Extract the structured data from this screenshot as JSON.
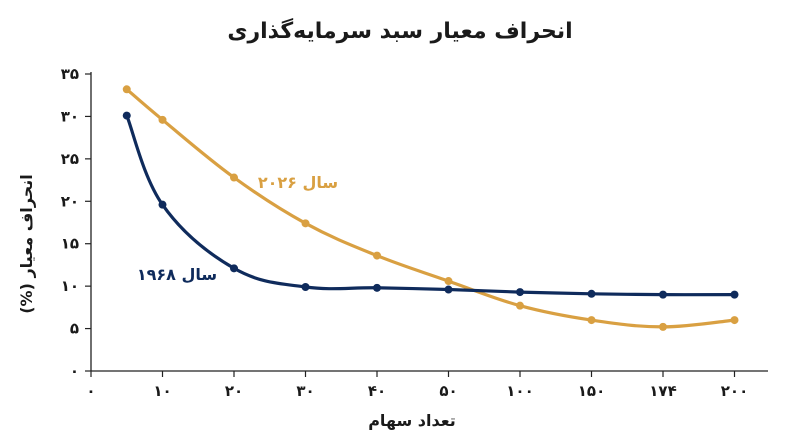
{
  "chart_data": {
    "type": "line",
    "title": "انحراف معیار سبد سرمایه‌گذاری",
    "xlabel": "تعداد سهام",
    "ylabel": "انحراف معیار (%)",
    "categories": [
      "۰",
      "۱۰",
      "۲۰",
      "۳۰",
      "۴۰",
      "۵۰",
      "۱۰۰",
      "۱۵۰",
      "۱۷۴",
      "۲۰۰"
    ],
    "y_ticks": [
      "۰",
      "۵",
      "۱۰",
      "۱۵",
      "۲۰",
      "۲۵",
      "۳۰",
      "۳۵"
    ],
    "ylim": [
      0,
      35
    ],
    "grid": false,
    "series": [
      {
        "name": "سال ۲۰۲۶",
        "color": "#d9a042",
        "x_index": [
          0.5,
          1,
          2,
          3,
          4,
          5,
          6,
          7,
          8,
          9
        ],
        "values": [
          33.2,
          29.6,
          22.8,
          17.4,
          13.6,
          10.6,
          7.7,
          6.0,
          5.2,
          6.0
        ]
      },
      {
        "name": "سال ۱۹۶۸",
        "color": "#0f2b5c",
        "x_index": [
          0.5,
          1,
          2,
          3,
          4,
          5,
          6,
          7,
          8,
          9
        ],
        "values": [
          30.1,
          19.6,
          12.1,
          9.9,
          9.8,
          9.6,
          9.3,
          9.1,
          9.0,
          9.0
        ]
      }
    ],
    "labels": {
      "series_2026": "سال ۲۰۲۶",
      "series_1968": "سال ۱۹۶۸"
    }
  }
}
